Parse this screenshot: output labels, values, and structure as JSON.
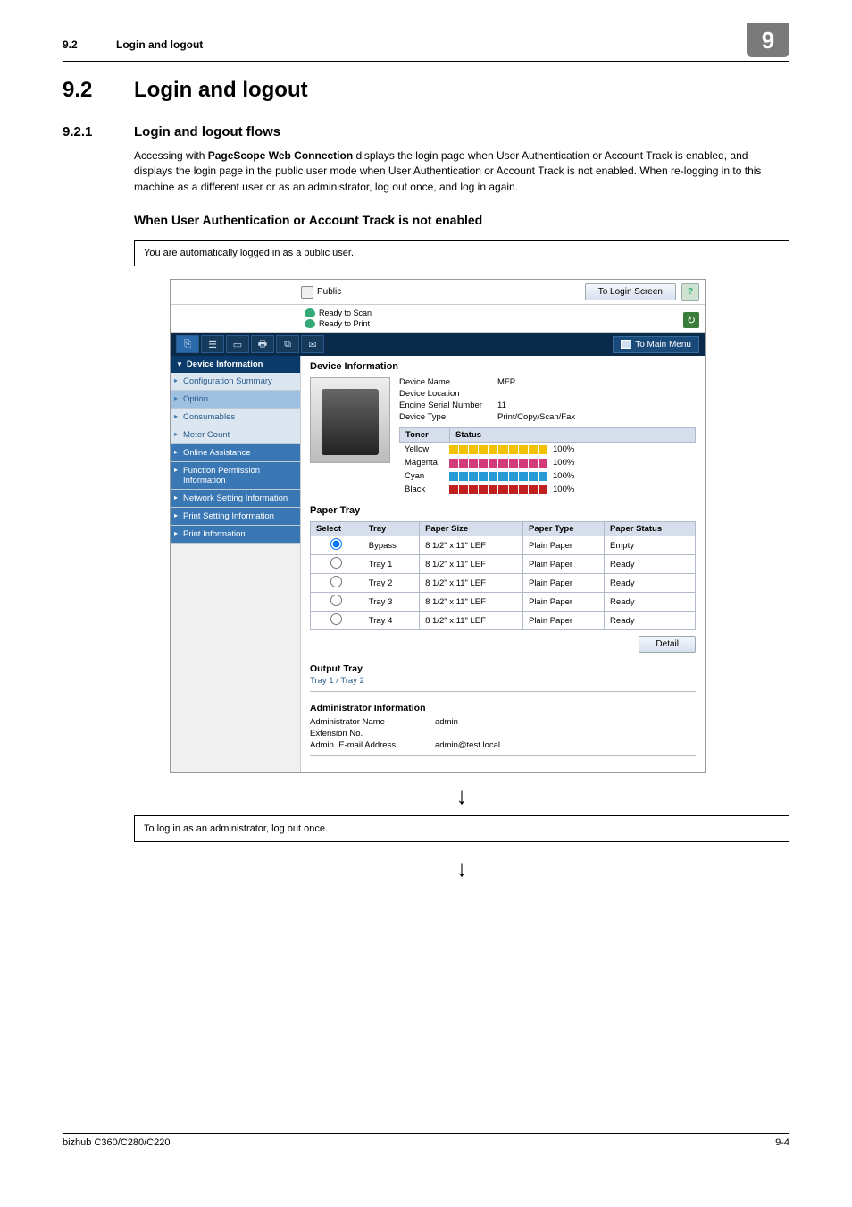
{
  "doc": {
    "section_number_small": "9.2",
    "section_title_small": "Login and logout",
    "chapter_badge": "9",
    "h2_num": "9.2",
    "h2_txt": "Login and logout",
    "h3_num": "9.2.1",
    "h3_txt": "Login and logout flows",
    "body_html_prefix": "Accessing with ",
    "body_bold": "PageScope Web Connection",
    "body_html_suffix": " displays the login page when User Authentication or Account Track is enabled, and displays the login page in the public user mode when User Authentication or Account Track is not enabled. When re-logging in to this machine as a different user or as an administrator, log out once, and log in again.",
    "h4": "When User Authentication or Account Track is not enabled",
    "box1": "You are automatically logged in as a public user.",
    "box2": "To log in as an administrator, log out once.",
    "footer_left": "bizhub C360/C280/C220",
    "footer_right": "9-4"
  },
  "shot": {
    "user_label": "Public",
    "login_btn": "To Login Screen",
    "help": "?",
    "status": {
      "scan": "Ready to Scan",
      "print": "Ready to Print"
    },
    "refresh": "↻",
    "mainmenu": "To Main Menu",
    "sidebar": {
      "group": "Device Information",
      "items": [
        "Configuration Summary",
        "Option",
        "Consumables",
        "Meter Count"
      ],
      "top_items": [
        "Online Assistance",
        "Function Permission Information",
        "Network Setting Information",
        "Print Setting Information",
        "Print Information"
      ]
    },
    "content": {
      "title": "Device Information",
      "fields": {
        "name_lbl": "Device Name",
        "name_val": "MFP",
        "loc_lbl": "Device Location",
        "loc_val": "",
        "serial_lbl": "Engine Serial Number",
        "serial_val": "11",
        "type_lbl": "Device Type",
        "type_val": "Print/Copy/Scan/Fax"
      },
      "toner": {
        "head1": "Toner",
        "head2": "Status",
        "rows": [
          {
            "name": "Yellow",
            "color": "#f2c200",
            "pct": "100%"
          },
          {
            "name": "Magenta",
            "color": "#d23a7a",
            "pct": "100%"
          },
          {
            "name": "Cyan",
            "color": "#2a9ad6",
            "pct": "100%"
          },
          {
            "name": "Black",
            "color": "#c02020",
            "pct": "100%"
          }
        ]
      },
      "ptray": {
        "title": "Paper Tray",
        "cols": [
          "Select",
          "Tray",
          "Paper Size",
          "Paper Type",
          "Paper Status"
        ],
        "rows": [
          {
            "sel": true,
            "tray": "Bypass",
            "size": "8 1/2\" x 11\" LEF",
            "type": "Plain Paper",
            "status": "Empty"
          },
          {
            "sel": false,
            "tray": "Tray 1",
            "size": "8 1/2\" x 11\" LEF",
            "type": "Plain Paper",
            "status": "Ready"
          },
          {
            "sel": false,
            "tray": "Tray 2",
            "size": "8 1/2\" x 11\" LEF",
            "type": "Plain Paper",
            "status": "Ready"
          },
          {
            "sel": false,
            "tray": "Tray 3",
            "size": "8 1/2\" x 11\" LEF",
            "type": "Plain Paper",
            "status": "Ready"
          },
          {
            "sel": false,
            "tray": "Tray 4",
            "size": "8 1/2\" x 11\" LEF",
            "type": "Plain Paper",
            "status": "Ready"
          }
        ],
        "detail_btn": "Detail"
      },
      "output": {
        "title": "Output Tray",
        "line": "Tray 1 / Tray 2"
      },
      "admin": {
        "title": "Administrator Information",
        "rows": [
          {
            "lbl": "Administrator Name",
            "val": "admin"
          },
          {
            "lbl": "Extension No.",
            "val": ""
          },
          {
            "lbl": "Admin. E-mail Address",
            "val": "admin@test.local"
          }
        ]
      }
    }
  }
}
